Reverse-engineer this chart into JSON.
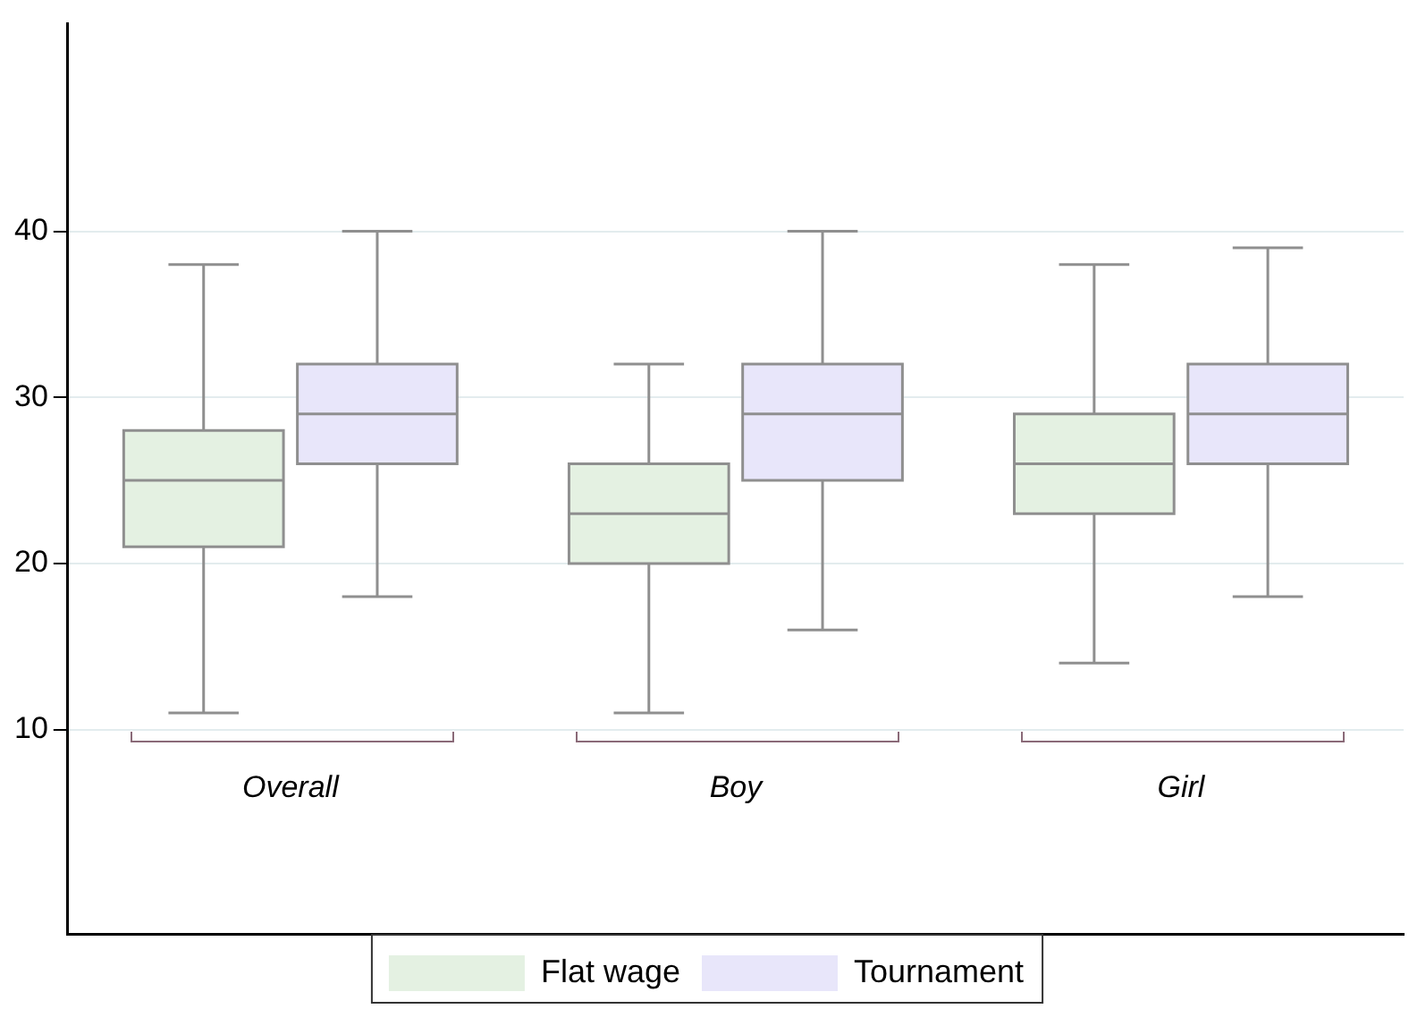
{
  "chart_data": {
    "type": "box",
    "categories": [
      "Overall",
      "Boy",
      "Girl"
    ],
    "series": [
      {
        "name": "Flat wage",
        "color": "#e4f1e2",
        "boxes": [
          {
            "low": 11,
            "q1": 21,
            "median": 25,
            "q3": 28,
            "high": 38
          },
          {
            "low": 11,
            "q1": 20,
            "median": 23,
            "q3": 26,
            "high": 32
          },
          {
            "low": 14,
            "q1": 23,
            "median": 26,
            "q3": 29,
            "high": 38
          }
        ]
      },
      {
        "name": "Tournament",
        "color": "#e8e6fa",
        "boxes": [
          {
            "low": 18,
            "q1": 26,
            "median": 29,
            "q3": 32,
            "high": 40
          },
          {
            "low": 16,
            "q1": 25,
            "median": 29,
            "q3": 32,
            "high": 40
          },
          {
            "low": 18,
            "q1": 26,
            "median": 29,
            "q3": 32,
            "high": 39
          }
        ]
      }
    ],
    "ylim": [
      -2.3,
      52.5
    ],
    "yticks": [
      10,
      20,
      30,
      40
    ],
    "grid": "y",
    "legend": "bottom"
  }
}
